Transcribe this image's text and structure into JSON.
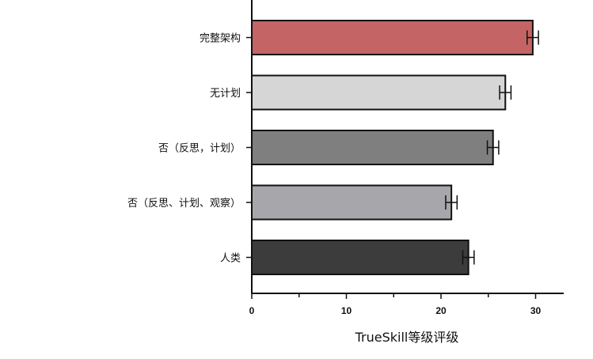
{
  "chart_data": {
    "type": "bar",
    "orientation": "horizontal",
    "categories": [
      "完整架构",
      "无计划",
      "否（反思，计划）",
      "否（反思、计划、观察）",
      "人类"
    ],
    "values": [
      29.7,
      26.8,
      25.5,
      21.1,
      22.9
    ],
    "errors": [
      0.6,
      0.6,
      0.6,
      0.6,
      0.6
    ],
    "colors": [
      "#c46464",
      "#d6d6d6",
      "#7f7f7f",
      "#a7a7ab",
      "#3c3c3c"
    ],
    "xlabel": "TrueSkill等级评级",
    "xlim": [
      0,
      33
    ],
    "xticks": [
      0,
      10,
      20,
      30
    ],
    "grid": false
  }
}
